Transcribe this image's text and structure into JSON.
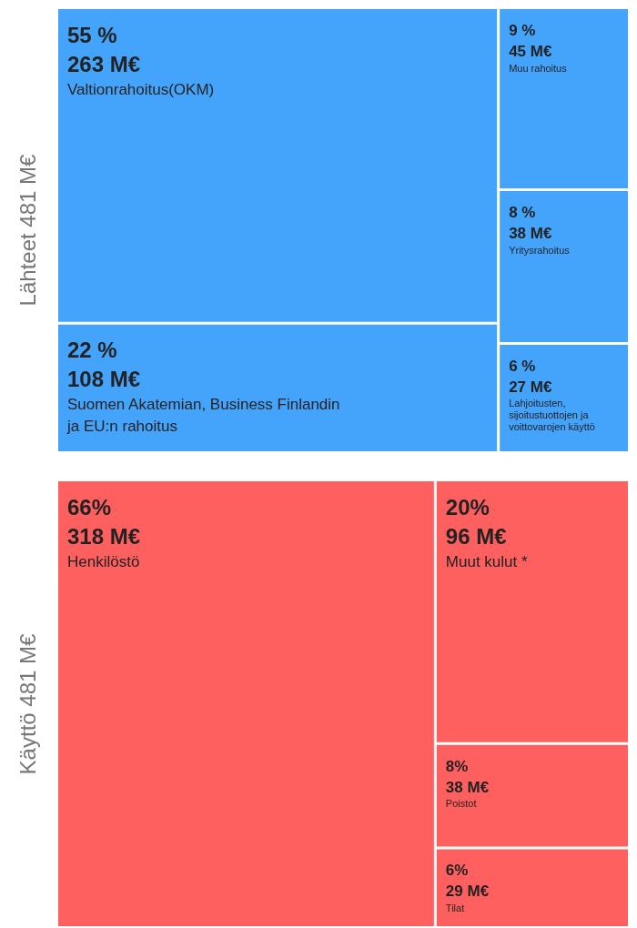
{
  "chart_data": [
    {
      "type": "other",
      "ylabel": "Lähteet 481 M€",
      "categories": [
        "Valtionrahoitus(OKM)",
        "Suomen Akatemian, Business Finlandin ja EU:n rahoitus",
        "Muu rahoitus",
        "Yritysrahoitus",
        "Lahjoitusten, sijoitustuottojen ja voittovarojen käyttö"
      ],
      "colors": [
        "#44a4fc",
        "#44a4fc",
        "#44a4fc",
        "#44a4fc",
        "#44a4fc"
      ],
      "series": [
        {
          "values": [
            55,
            22,
            9,
            8,
            6
          ],
          "value_labels": [
            "55 %",
            "22 %",
            "9 %",
            "8 %",
            "6 %"
          ]
        },
        {
          "values": [
            263,
            108,
            45,
            38,
            27
          ],
          "value_labels": [
            "263 M€",
            "108 M€",
            "45 M€",
            "38 M€",
            "27 M€"
          ]
        }
      ]
    },
    {
      "type": "other",
      "ylabel": "Käyttö 481 M€",
      "categories": [
        "Henkilöstö",
        "Muut kulut *",
        "Poistot",
        "Tilat"
      ],
      "colors": [
        "#fe5f5f",
        "#fe5f5f",
        "#fe5f5f",
        "#fe5f5f"
      ],
      "series": [
        {
          "values": [
            66,
            20,
            8,
            6
          ],
          "value_labels": [
            "66%",
            "20%",
            "8%",
            "6%"
          ]
        },
        {
          "values": [
            318,
            96,
            38,
            29
          ],
          "value_labels": [
            "318 M€",
            "96 M€",
            "38 M€",
            "29 M€"
          ]
        }
      ]
    }
  ]
}
